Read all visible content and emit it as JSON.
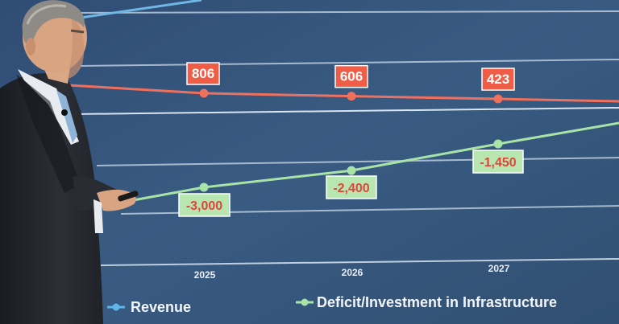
{
  "chart_data": {
    "type": "line",
    "categories": [
      "2025",
      "2026",
      "2027"
    ],
    "series": [
      {
        "name": "Revenue",
        "values": [
          806,
          606,
          423
        ],
        "color": "#f0705e"
      },
      {
        "name": "Deficit/Investment in Infrastructure",
        "values": [
          -3000,
          -2400,
          -1450
        ],
        "color": "#a8e4a8"
      }
    ],
    "data_labels": {
      "upper": [
        "806",
        "606",
        "423"
      ],
      "lower": [
        "-3,000",
        "-2,400",
        "-1,450"
      ]
    },
    "legend": [
      {
        "label": "Revenue",
        "color": "#5fb4e8"
      },
      {
        "label": "Deficit/Investment in Infrastructure",
        "color": "#a8e4a8"
      }
    ],
    "legend_position": "bottom"
  },
  "colors": {
    "screen_bg": "#2d4c72",
    "gridline": "#d8e4f0",
    "revenue_line": "#f0705e",
    "deficit_line": "#a8e4a8",
    "label_red": "#ef5d46",
    "label_green": "#b8e6b0",
    "label_red_text": "#ffffff",
    "label_green_text": "#e0443a"
  }
}
